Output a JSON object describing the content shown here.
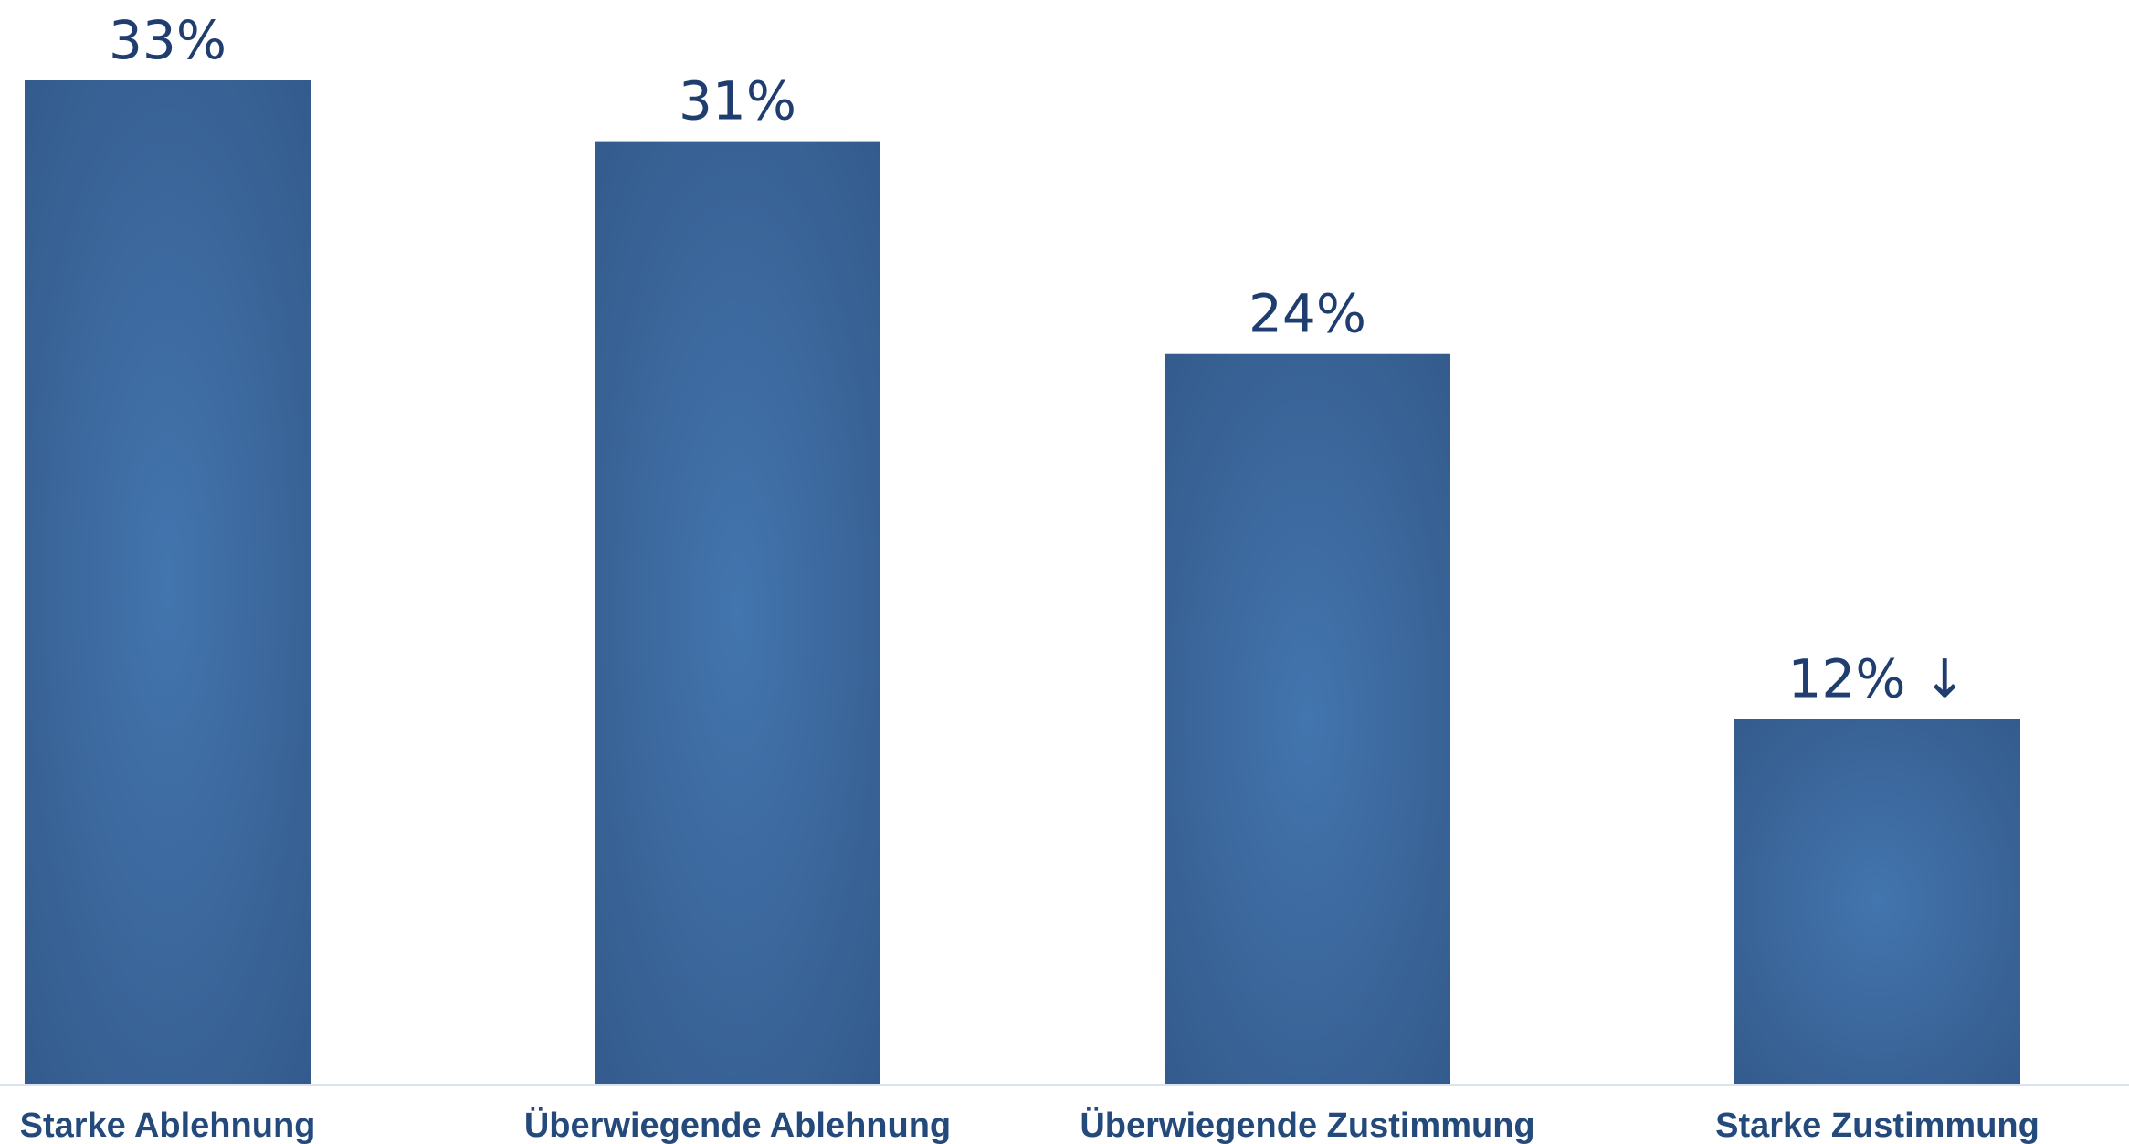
{
  "chart_data": {
    "type": "bar",
    "title": "",
    "xlabel": "",
    "ylabel": "",
    "categories": [
      "Starke Ablehnung",
      "Überwiegende Ablehnung",
      "Überwiegende Zustimmung",
      "Starke Zustimmung"
    ],
    "values": [
      33,
      31,
      24,
      12
    ],
    "value_labels": [
      "33%",
      "31%",
      "24%",
      "12% ↓"
    ],
    "unit": "%",
    "ylim": [
      0,
      33
    ],
    "grid": false,
    "legend": "none",
    "colors": {
      "bar_edge": "#33598a",
      "bar_center": "#4375ae",
      "value_text": "#1f3d6e",
      "category_text": "#244a7c",
      "baseline": "#dbe4ee"
    }
  }
}
